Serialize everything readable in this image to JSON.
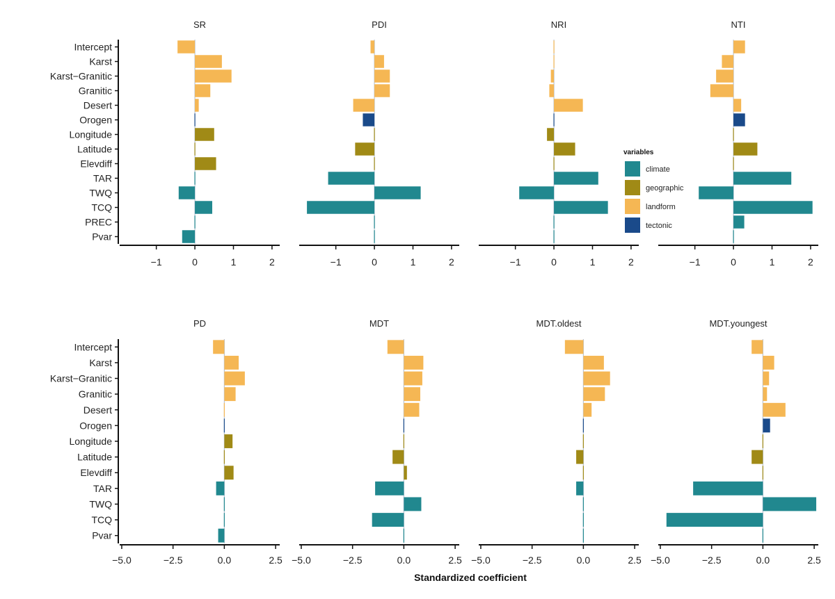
{
  "chart_data": {
    "type": "bar",
    "orientation": "horizontal",
    "xlabel": "Standardized coefficient",
    "legend": {
      "title": "variables",
      "placement": "right",
      "entries": [
        {
          "name": "climate",
          "color": "#21888F"
        },
        {
          "name": "geographic",
          "color": "#A08A16"
        },
        {
          "name": "landform",
          "color": "#F5B754"
        },
        {
          "name": "tectonic",
          "color": "#1A4A8A"
        }
      ]
    },
    "rows": [
      {
        "xlim": [
          -1.95,
          2.2
        ],
        "xticks": [
          -1,
          0,
          1,
          2
        ],
        "categories": [
          "Intercept",
          "Karst",
          "Karst−Granitic",
          "Granitic",
          "Desert",
          "Orogen",
          "Longitude",
          "Latitude",
          "Elevdiff",
          "TAR",
          "TWQ",
          "TCQ",
          "PREC",
          "Pvar"
        ],
        "category_types": [
          "landform",
          "landform",
          "landform",
          "landform",
          "landform",
          "tectonic",
          "geographic",
          "geographic",
          "geographic",
          "climate",
          "climate",
          "climate",
          "climate",
          "climate"
        ],
        "panels": [
          {
            "title": "SR",
            "values": [
              -0.45,
              0.7,
              0.95,
              0.4,
              0.1,
              0.0,
              0.5,
              0.0,
              0.55,
              0.0,
              -0.42,
              0.45,
              0.0,
              -0.33
            ]
          },
          {
            "title": "PDI",
            "values": [
              -0.1,
              0.25,
              0.4,
              0.4,
              -0.55,
              -0.3,
              0.0,
              -0.5,
              0.0,
              -1.2,
              1.2,
              -1.75,
              0.0,
              0.0
            ]
          },
          {
            "title": "NRI",
            "values": [
              0.0,
              0.0,
              -0.08,
              -0.12,
              0.75,
              0.0,
              -0.18,
              0.55,
              0.0,
              1.15,
              -0.9,
              1.4,
              0.0,
              0.0
            ]
          },
          {
            "title": "NTI",
            "values": [
              0.3,
              -0.3,
              -0.45,
              -0.6,
              0.2,
              0.3,
              0.0,
              0.62,
              0.0,
              1.5,
              -0.9,
              2.05,
              0.28,
              0.0
            ]
          }
        ]
      },
      {
        "xlim": [
          -5.1,
          2.7
        ],
        "xticks": [
          -5.0,
          -2.5,
          0.0,
          2.5
        ],
        "categories": [
          "Intercept",
          "Karst",
          "Karst−Granitic",
          "Granitic",
          "Desert",
          "Orogen",
          "Longitude",
          "Latitude",
          "Elevdiff",
          "TAR",
          "TWQ",
          "TCQ",
          "Pvar"
        ],
        "category_types": [
          "landform",
          "landform",
          "landform",
          "landform",
          "landform",
          "tectonic",
          "geographic",
          "geographic",
          "geographic",
          "climate",
          "climate",
          "climate",
          "climate"
        ],
        "panels": [
          {
            "title": "PD",
            "values": [
              -0.55,
              0.7,
              1.0,
              0.55,
              0.0,
              0.0,
              0.4,
              0.0,
              0.45,
              -0.4,
              0.0,
              0.0,
              -0.3
            ]
          },
          {
            "title": "MDT",
            "values": [
              -0.8,
              0.95,
              0.9,
              0.8,
              0.75,
              0.0,
              0.0,
              -0.55,
              0.15,
              -1.4,
              0.85,
              -1.55,
              0.0
            ]
          },
          {
            "title": "MDT.oldest",
            "values": [
              -0.9,
              1.0,
              1.3,
              1.05,
              0.4,
              0.0,
              0.0,
              -0.35,
              0.0,
              -0.35,
              0.0,
              0.0,
              0.0
            ]
          },
          {
            "title": "MDT.youngest",
            "values": [
              -0.55,
              0.55,
              0.3,
              0.2,
              1.1,
              0.35,
              0.0,
              -0.55,
              0.0,
              -3.4,
              2.6,
              -4.7,
              0.0
            ]
          }
        ]
      }
    ]
  }
}
